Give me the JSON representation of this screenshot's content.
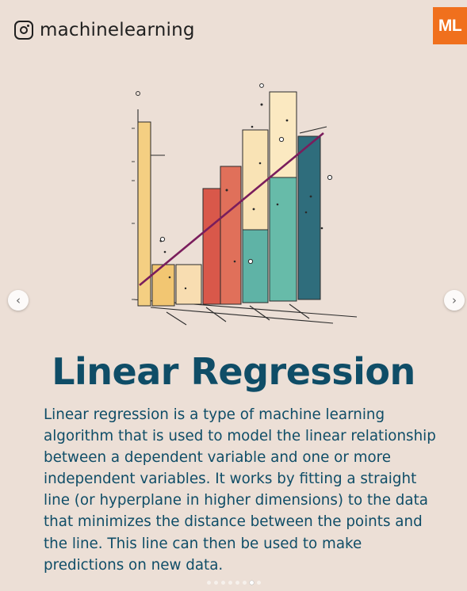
{
  "header": {
    "instagram_icon": "instagram-icon",
    "handle": "machinelearning",
    "logo_text": "ML"
  },
  "navigation": {
    "prev_icon": "chevron-left-icon",
    "next_icon": "chevron-right-icon",
    "prev_glyph": "‹",
    "next_glyph": "›"
  },
  "post": {
    "title": "Linear Regression",
    "body_lines": [
      "Linear regression is a type of machine learning",
      "algorithm that is used to model the linear relationship",
      "between a dependent variable and one or more",
      "independent variables. It works by fitting a straight",
      "line (or hyperplane in higher dimensions) to the data",
      "that minimizes the distance between the points and",
      "the line. This line can then be used to make",
      "predictions on new data."
    ]
  },
  "carousel": {
    "total": 8,
    "active_index": 6
  },
  "colors": {
    "background": "#ecdfd6",
    "title": "#0f4d67",
    "logo_bg": "#f0701d",
    "bar_yellow": "#f4cf82",
    "bar_red": "#d9584a",
    "bar_teal": "#5fb3a6",
    "bar_dark_teal": "#2f6d7c",
    "regression_line": "#7a1d5c"
  }
}
